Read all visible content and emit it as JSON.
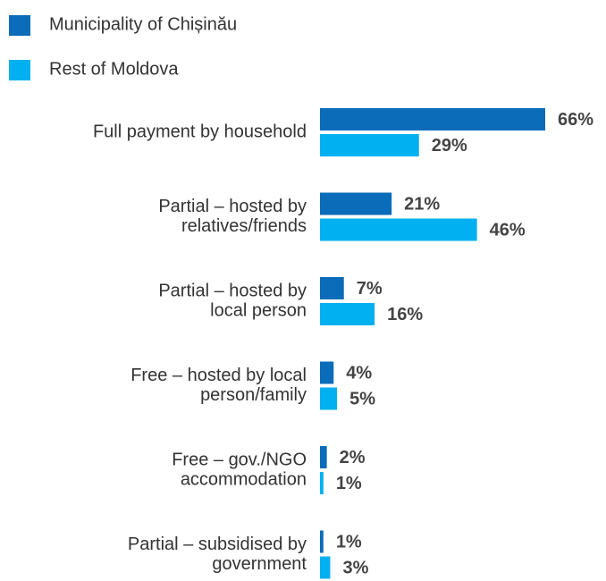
{
  "chart_data": {
    "type": "bar",
    "orientation": "horizontal",
    "categories": [
      [
        "Full payment by household"
      ],
      [
        "Partial – hosted by",
        "relatives/friends"
      ],
      [
        "Partial – hosted by",
        "local person"
      ],
      [
        "Free – hosted by local",
        "person/family"
      ],
      [
        "Free – gov./NGO",
        "accommodation"
      ],
      [
        "Partial – subsidised by",
        "government"
      ]
    ],
    "series": [
      {
        "name": "Municipality of Chișinău",
        "color": "#0b6cb9",
        "values": [
          66,
          21,
          7,
          4,
          2,
          1
        ],
        "value_labels": [
          "66%",
          "21%",
          "7%",
          "4%",
          "2%",
          "1%"
        ]
      },
      {
        "name": "Rest of Moldova",
        "color": "#00b0f0",
        "values": [
          29,
          46,
          16,
          5,
          1,
          3
        ],
        "value_labels": [
          "29%",
          "46%",
          "16%",
          "5%",
          "1%",
          "3%"
        ]
      }
    ]
  }
}
